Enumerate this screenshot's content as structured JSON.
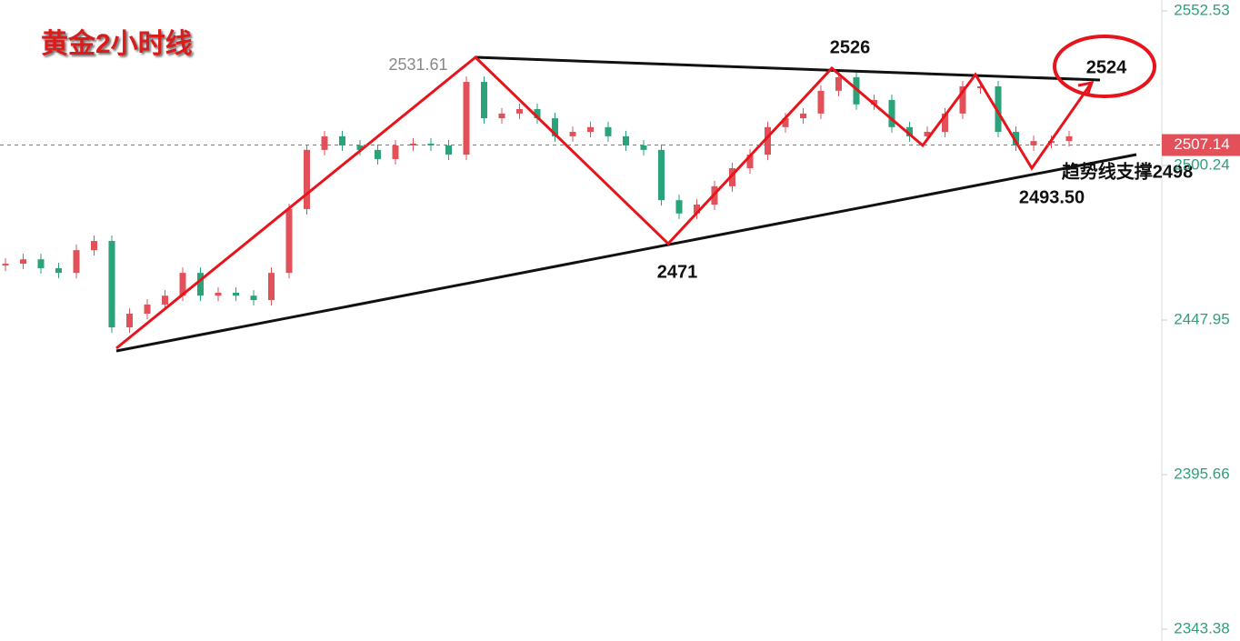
{
  "chart_data": {
    "type": "candlestick",
    "title": "黄金2小时线",
    "ylim": [
      2339.4,
      2556.2
    ],
    "yticks": [
      2552.53,
      2500.24,
      2447.95,
      2395.66,
      2343.38
    ],
    "last_price": 2507.14,
    "up_color": "#e2505a",
    "down_color": "#2aa37a",
    "values": [
      2467.0,
      2468.5,
      2465.5,
      2463.9,
      2471.6,
      2474.7,
      2445.5,
      2450.1,
      2453.2,
      2456.2,
      2463.9,
      2456.2,
      2457.2,
      2456.2,
      2454.7,
      2463.9,
      2485.5,
      2505.5,
      2510.1,
      2507.0,
      2505.5,
      2502.4,
      2507.0,
      2507.6,
      2507.0,
      2503.9,
      2528.5,
      2516.2,
      2517.8,
      2519.3,
      2516.2,
      2510.1,
      2511.6,
      2513.2,
      2510.1,
      2507.0,
      2505.5,
      2488.5,
      2484.0,
      2487.0,
      2493.2,
      2499.3,
      2503.9,
      2513.2,
      2516.2,
      2517.8,
      2525.5,
      2530.1,
      2520.9,
      2522.4,
      2513.2,
      2510.1,
      2511.6,
      2517.8,
      2527.0,
      2527.0,
      2511.6,
      2507.0,
      2508.5,
      2508.5,
      2510.1
    ],
    "annotations": [
      "2531.61",
      "2526",
      "2524",
      "2471",
      "趋势线支撑2498",
      "2493.50"
    ]
  }
}
